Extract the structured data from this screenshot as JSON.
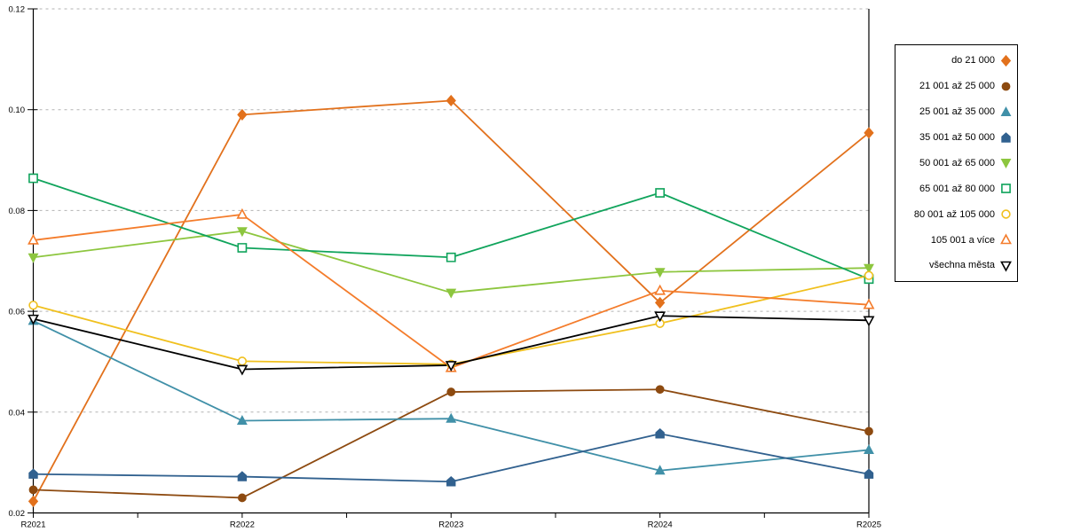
{
  "chart_data": {
    "type": "line",
    "title": "",
    "xlabel": "",
    "ylabel": "",
    "categories": [
      "R2021",
      "R2022",
      "R2023",
      "R2024",
      "R2025"
    ],
    "ylim": [
      0.02,
      0.12
    ],
    "ytick_labels": [
      "0.02",
      "0.04",
      "0.06",
      "0.08",
      "0.10",
      "0.12"
    ],
    "grid": "horizontal-dashed",
    "legend_position": "right-box",
    "series": [
      {
        "name": "do 21 000",
        "marker": "diamond",
        "fill": "filled",
        "color": "#e2711c",
        "values": [
          0.0223,
          0.099,
          0.1018,
          0.0617,
          0.0954
        ]
      },
      {
        "name": "21 001 až 25 000",
        "marker": "circle",
        "fill": "filled",
        "color": "#8d4a10",
        "values": [
          0.0246,
          0.023,
          0.044,
          0.0445,
          0.0362
        ]
      },
      {
        "name": "25 001 až 35 000",
        "marker": "triangle-up",
        "fill": "filled",
        "color": "#4090a8",
        "values": [
          0.0581,
          0.0383,
          0.0387,
          0.0284,
          0.0325
        ]
      },
      {
        "name": "35 001 až 50 000",
        "marker": "pentagon",
        "fill": "filled",
        "color": "#31618f",
        "values": [
          0.0277,
          0.0272,
          0.0262,
          0.0357,
          0.0277
        ]
      },
      {
        "name": "50 001 až 65 000",
        "marker": "triangle-down",
        "fill": "filled",
        "color": "#8dc63f",
        "values": [
          0.0707,
          0.0759,
          0.0637,
          0.0678,
          0.0686
        ]
      },
      {
        "name": "65 001 až 80 000",
        "marker": "square",
        "fill": "open",
        "color": "#10a45c",
        "values": [
          0.0864,
          0.0726,
          0.0707,
          0.0835,
          0.0664
        ]
      },
      {
        "name": "80 001 až 105 000",
        "marker": "circle",
        "fill": "open",
        "color": "#f0c01e",
        "values": [
          0.0612,
          0.0501,
          0.0495,
          0.0576,
          0.0671
        ]
      },
      {
        "name": "105 001 a více",
        "marker": "triangle-up",
        "fill": "open",
        "color": "#f47c2b",
        "values": [
          0.0741,
          0.0792,
          0.0488,
          0.0641,
          0.0613
        ]
      },
      {
        "name": "všechna města",
        "marker": "triangle-down",
        "fill": "open",
        "color": "#000000",
        "values": [
          0.0585,
          0.0485,
          0.0493,
          0.0591,
          0.0582
        ]
      }
    ]
  },
  "colors": {
    "axis": "#000000",
    "gridline": "#b3b3b3",
    "background": "#ffffff",
    "legend_border": "#000000",
    "tick_label": "#000000"
  }
}
